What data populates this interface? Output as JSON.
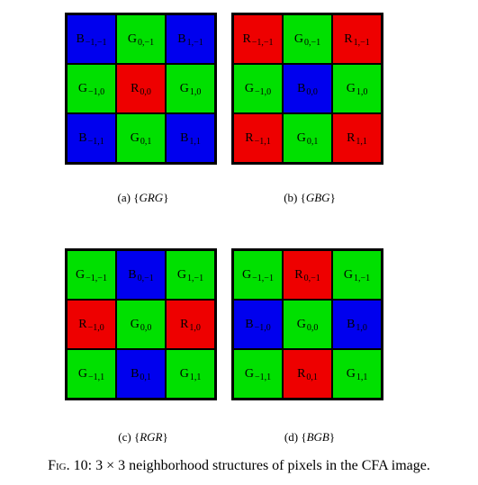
{
  "colors": {
    "R": "#ee0000",
    "G": "#00e000",
    "B": "#0000ee"
  },
  "panels": [
    {
      "caption_prefix": "(a) {",
      "caption_key": "GRG",
      "caption_suffix": "}",
      "cells": [
        {
          "c": "B",
          "sym": "B",
          "sub": "−1,−1"
        },
        {
          "c": "G",
          "sym": "G",
          "sub": "0,−1"
        },
        {
          "c": "B",
          "sym": "B",
          "sub": "1,−1"
        },
        {
          "c": "G",
          "sym": "G",
          "sub": "−1,0"
        },
        {
          "c": "R",
          "sym": "R",
          "sub": "0,0"
        },
        {
          "c": "G",
          "sym": "G",
          "sub": "1,0"
        },
        {
          "c": "B",
          "sym": "B",
          "sub": "−1,1"
        },
        {
          "c": "G",
          "sym": "G",
          "sub": "0,1"
        },
        {
          "c": "B",
          "sym": "B",
          "sub": "1,1"
        }
      ]
    },
    {
      "caption_prefix": "(b) {",
      "caption_key": "GBG",
      "caption_suffix": "}",
      "cells": [
        {
          "c": "R",
          "sym": "R",
          "sub": "−1,−1"
        },
        {
          "c": "G",
          "sym": "G",
          "sub": "0,−1"
        },
        {
          "c": "R",
          "sym": "R",
          "sub": "1,−1"
        },
        {
          "c": "G",
          "sym": "G",
          "sub": "−1,0"
        },
        {
          "c": "B",
          "sym": "B",
          "sub": "0,0"
        },
        {
          "c": "G",
          "sym": "G",
          "sub": "1,0"
        },
        {
          "c": "R",
          "sym": "R",
          "sub": "−1,1"
        },
        {
          "c": "G",
          "sym": "G",
          "sub": "0,1"
        },
        {
          "c": "R",
          "sym": "R",
          "sub": "1,1"
        }
      ]
    },
    {
      "caption_prefix": "(c) {",
      "caption_key": "RGR",
      "caption_suffix": "}",
      "cells": [
        {
          "c": "G",
          "sym": "G",
          "sub": "−1,−1"
        },
        {
          "c": "B",
          "sym": "B",
          "sub": "0,−1"
        },
        {
          "c": "G",
          "sym": "G",
          "sub": "1,−1"
        },
        {
          "c": "R",
          "sym": "R",
          "sub": "−1,0"
        },
        {
          "c": "G",
          "sym": "G",
          "sub": "0,0"
        },
        {
          "c": "R",
          "sym": "R",
          "sub": "1,0"
        },
        {
          "c": "G",
          "sym": "G",
          "sub": "−1,1"
        },
        {
          "c": "B",
          "sym": "B",
          "sub": "0,1"
        },
        {
          "c": "G",
          "sym": "G",
          "sub": "1,1"
        }
      ]
    },
    {
      "caption_prefix": "(d) {",
      "caption_key": "BGB",
      "caption_suffix": "}",
      "cells": [
        {
          "c": "G",
          "sym": "G",
          "sub": "−1,−1"
        },
        {
          "c": "R",
          "sym": "R",
          "sub": "0,−1"
        },
        {
          "c": "G",
          "sym": "G",
          "sub": "1,−1"
        },
        {
          "c": "B",
          "sym": "B",
          "sub": "−1,0"
        },
        {
          "c": "G",
          "sym": "G",
          "sub": "0,0"
        },
        {
          "c": "B",
          "sym": "B",
          "sub": "1,0"
        },
        {
          "c": "G",
          "sym": "G",
          "sub": "−1,1"
        },
        {
          "c": "R",
          "sym": "R",
          "sub": "0,1"
        },
        {
          "c": "G",
          "sym": "G",
          "sub": "1,1"
        }
      ]
    }
  ],
  "figure_caption": {
    "label": "Fig. 10:",
    "text": "3 × 3 neighborhood structures of pixels in the CFA image."
  }
}
